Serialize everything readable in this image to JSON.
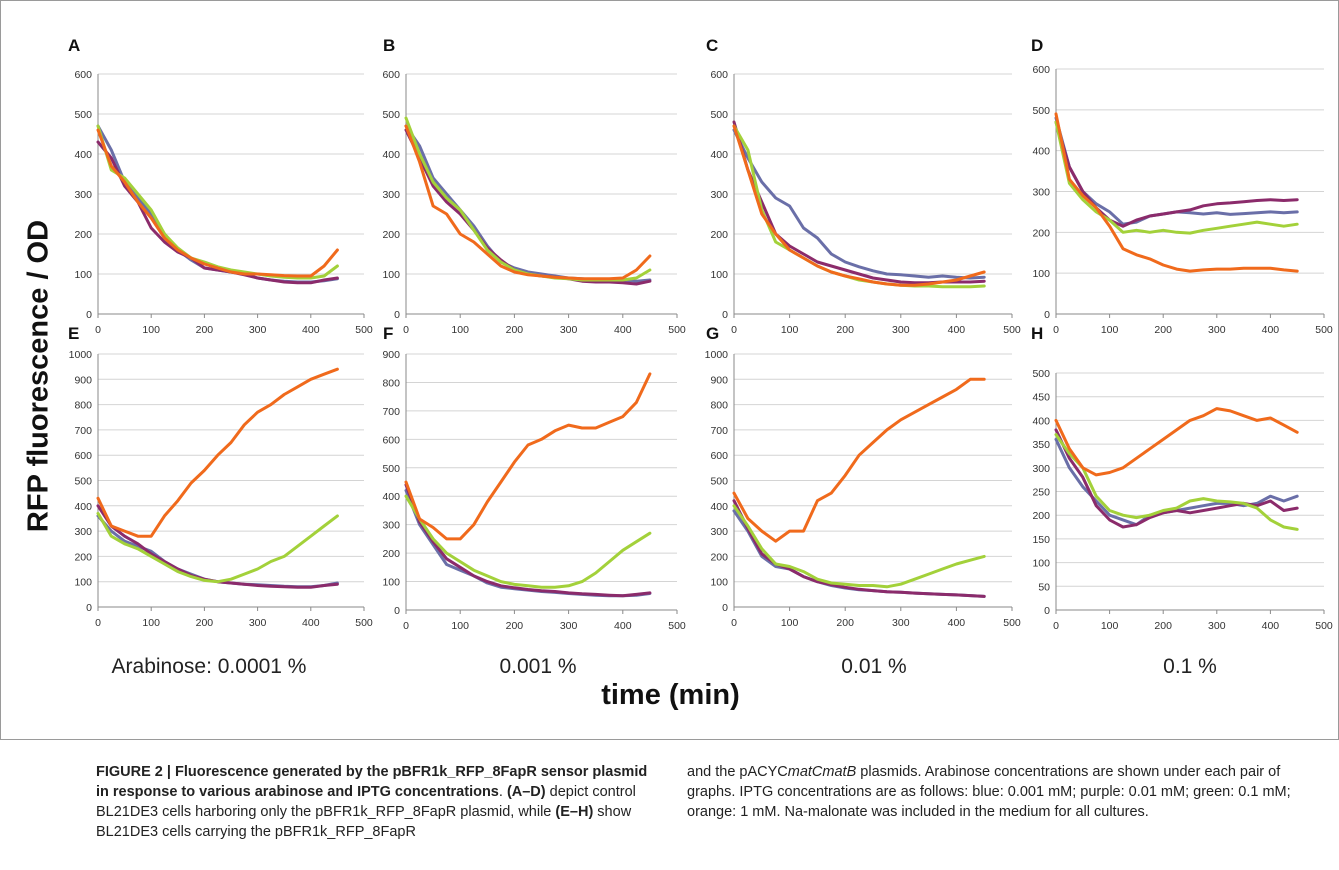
{
  "figure": {
    "y_axis_label": "RFP fluorescence / OD",
    "x_axis_label": "time (min)",
    "concentration_labels": [
      "Arabinose: 0.0001 %",
      "0.001 %",
      "0.01 %",
      "0.1 %"
    ]
  },
  "caption": {
    "figure_number": "FIGURE 2",
    "separator": " | ",
    "title": "Fluorescence generated by the pBFR1k_RFP_8FapR sensor plasmid in response to various arabinose and IPTG concentrations",
    "p1": ". ",
    "ref_ad": "(A–D)",
    "p2": " depict control BL21DE3 cells harboring only the pBFR1k_RFP_8FapR plasmid, while ",
    "ref_eh": "(E–H)",
    "p3": " show BL21DE3 cells carrying the pBFR1k_RFP_8FapR and the pACYC",
    "plasmid_italic": "matCmatB",
    "p4": " plasmids. Arabinose concentrations are shown under each pair of graphs. IPTG concentrations are as follows: blue: 0.001 mM; purple: 0.01 mM; green: 0.1 mM; orange: 1 mM. Na-malonate was included in the medium for all cultures."
  },
  "colors": {
    "blue": "#6a6fa8",
    "purple": "#8b2b6b",
    "green": "#a3d13a",
    "orange": "#f06a1c",
    "grid": "#d4d4d4",
    "axis": "#8a8a8a"
  },
  "chart_data": [
    {
      "panel": "A",
      "type": "line",
      "x": [
        0,
        25,
        50,
        75,
        100,
        125,
        150,
        175,
        200,
        225,
        250,
        275,
        300,
        325,
        350,
        375,
        400,
        425,
        450
      ],
      "xlim": [
        0,
        500
      ],
      "ylim": [
        0,
        600
      ],
      "yticks": [
        0,
        100,
        200,
        300,
        400,
        500,
        600
      ],
      "xticks": [
        0,
        100,
        200,
        300,
        400,
        500
      ],
      "series": [
        {
          "color": "blue",
          "values": [
            470,
            410,
            330,
            290,
            250,
            200,
            160,
            135,
            115,
            110,
            105,
            100,
            90,
            85,
            82,
            80,
            80,
            83,
            88
          ]
        },
        {
          "color": "purple",
          "values": [
            430,
            390,
            320,
            280,
            215,
            180,
            155,
            140,
            115,
            110,
            105,
            98,
            90,
            85,
            80,
            78,
            78,
            85,
            90
          ]
        },
        {
          "color": "green",
          "values": [
            470,
            360,
            340,
            300,
            260,
            200,
            165,
            140,
            130,
            118,
            110,
            105,
            100,
            95,
            92,
            90,
            90,
            95,
            120
          ]
        },
        {
          "color": "orange",
          "values": [
            460,
            370,
            330,
            280,
            240,
            190,
            160,
            140,
            125,
            115,
            105,
            100,
            100,
            98,
            96,
            95,
            95,
            120,
            160
          ]
        }
      ]
    },
    {
      "panel": "B",
      "type": "line",
      "x": [
        0,
        25,
        50,
        75,
        100,
        125,
        150,
        175,
        200,
        225,
        250,
        275,
        300,
        325,
        350,
        375,
        400,
        425,
        450
      ],
      "xlim": [
        0,
        500
      ],
      "ylim": [
        0,
        600
      ],
      "yticks": [
        0,
        100,
        200,
        300,
        400,
        500,
        600
      ],
      "xticks": [
        0,
        100,
        200,
        300,
        400,
        500
      ],
      "series": [
        {
          "color": "blue",
          "values": [
            470,
            420,
            340,
            300,
            260,
            220,
            170,
            130,
            115,
            105,
            100,
            95,
            90,
            88,
            85,
            85,
            85,
            82,
            85
          ]
        },
        {
          "color": "purple",
          "values": [
            460,
            390,
            320,
            280,
            250,
            210,
            165,
            135,
            110,
            100,
            95,
            92,
            88,
            82,
            80,
            80,
            78,
            75,
            82
          ]
        },
        {
          "color": "green",
          "values": [
            490,
            400,
            330,
            290,
            260,
            210,
            160,
            130,
            110,
            100,
            95,
            90,
            88,
            85,
            85,
            85,
            85,
            90,
            110
          ]
        },
        {
          "color": "orange",
          "values": [
            470,
            380,
            270,
            250,
            200,
            180,
            150,
            120,
            105,
            98,
            95,
            92,
            90,
            88,
            88,
            88,
            90,
            110,
            145
          ]
        }
      ]
    },
    {
      "panel": "C",
      "type": "line",
      "x": [
        0,
        25,
        50,
        75,
        100,
        125,
        150,
        175,
        200,
        225,
        250,
        275,
        300,
        325,
        350,
        375,
        400,
        425,
        450
      ],
      "xlim": [
        0,
        500
      ],
      "ylim": [
        0,
        600
      ],
      "yticks": [
        0,
        100,
        200,
        300,
        400,
        500,
        600
      ],
      "xticks": [
        0,
        100,
        200,
        300,
        400,
        500
      ],
      "series": [
        {
          "color": "blue",
          "values": [
            460,
            390,
            330,
            290,
            270,
            215,
            190,
            150,
            130,
            118,
            108,
            100,
            98,
            95,
            92,
            95,
            92,
            90,
            92
          ]
        },
        {
          "color": "purple",
          "values": [
            480,
            360,
            280,
            200,
            170,
            150,
            130,
            120,
            110,
            100,
            90,
            85,
            80,
            78,
            78,
            80,
            80,
            80,
            82
          ]
        },
        {
          "color": "green",
          "values": [
            470,
            410,
            260,
            180,
            160,
            140,
            120,
            105,
            95,
            85,
            80,
            75,
            72,
            70,
            70,
            68,
            68,
            68,
            70
          ]
        },
        {
          "color": "orange",
          "values": [
            470,
            360,
            250,
            200,
            160,
            140,
            120,
            105,
            95,
            88,
            80,
            75,
            72,
            72,
            75,
            80,
            85,
            95,
            105
          ]
        }
      ]
    },
    {
      "panel": "D",
      "type": "line",
      "x": [
        0,
        25,
        50,
        75,
        100,
        125,
        150,
        175,
        200,
        225,
        250,
        275,
        300,
        325,
        350,
        375,
        400,
        425,
        450
      ],
      "xlim": [
        0,
        500
      ],
      "ylim": [
        0,
        600
      ],
      "yticks": [
        0,
        100,
        200,
        300,
        400,
        500,
        600
      ],
      "xticks": [
        0,
        100,
        200,
        300,
        400,
        500
      ],
      "series": [
        {
          "color": "blue",
          "values": [
            480,
            360,
            300,
            270,
            250,
            220,
            225,
            240,
            245,
            250,
            248,
            245,
            248,
            244,
            246,
            248,
            250,
            248,
            250
          ]
        },
        {
          "color": "purple",
          "values": [
            470,
            360,
            300,
            260,
            230,
            215,
            230,
            240,
            245,
            250,
            255,
            265,
            270,
            272,
            275,
            278,
            280,
            278,
            280
          ]
        },
        {
          "color": "green",
          "values": [
            470,
            320,
            280,
            250,
            230,
            200,
            205,
            200,
            205,
            200,
            198,
            205,
            210,
            215,
            220,
            225,
            220,
            215,
            220
          ]
        },
        {
          "color": "orange",
          "values": [
            490,
            330,
            290,
            260,
            215,
            160,
            145,
            135,
            120,
            110,
            105,
            108,
            110,
            110,
            112,
            112,
            112,
            108,
            105
          ]
        }
      ]
    },
    {
      "panel": "E",
      "type": "line",
      "x": [
        0,
        25,
        50,
        75,
        100,
        125,
        150,
        175,
        200,
        225,
        250,
        275,
        300,
        325,
        350,
        375,
        400,
        425,
        450
      ],
      "xlim": [
        0,
        500
      ],
      "ylim": [
        0,
        1000
      ],
      "yticks": [
        0,
        100,
        200,
        300,
        400,
        500,
        600,
        700,
        800,
        900,
        1000
      ],
      "xticks": [
        0,
        100,
        200,
        300,
        400,
        500
      ],
      "series": [
        {
          "color": "blue",
          "values": [
            360,
            300,
            260,
            240,
            220,
            180,
            150,
            130,
            110,
            100,
            95,
            90,
            88,
            85,
            82,
            80,
            80,
            85,
            95
          ]
        },
        {
          "color": "purple",
          "values": [
            400,
            320,
            280,
            250,
            210,
            180,
            150,
            125,
            110,
            100,
            95,
            90,
            85,
            82,
            80,
            78,
            78,
            85,
            90
          ]
        },
        {
          "color": "green",
          "values": [
            370,
            280,
            250,
            230,
            200,
            170,
            140,
            120,
            105,
            100,
            110,
            130,
            150,
            180,
            200,
            240,
            280,
            320,
            360
          ]
        },
        {
          "color": "orange",
          "values": [
            430,
            320,
            300,
            280,
            280,
            360,
            420,
            490,
            540,
            600,
            650,
            720,
            770,
            800,
            840,
            870,
            900,
            920,
            940
          ]
        }
      ]
    },
    {
      "panel": "F",
      "type": "line",
      "x": [
        0,
        25,
        50,
        75,
        100,
        125,
        150,
        175,
        200,
        225,
        250,
        275,
        300,
        325,
        350,
        375,
        400,
        425,
        450
      ],
      "xlim": [
        0,
        500
      ],
      "ylim": [
        0,
        900
      ],
      "yticks": [
        0,
        100,
        200,
        300,
        400,
        500,
        600,
        700,
        800,
        900
      ],
      "xticks": [
        0,
        100,
        200,
        300,
        400,
        500
      ],
      "series": [
        {
          "color": "blue",
          "values": [
            420,
            300,
            230,
            160,
            140,
            120,
            95,
            80,
            75,
            70,
            65,
            62,
            58,
            55,
            52,
            50,
            50,
            52,
            58
          ]
        },
        {
          "color": "purple",
          "values": [
            440,
            310,
            240,
            180,
            150,
            120,
            100,
            85,
            78,
            72,
            68,
            65,
            60,
            57,
            55,
            52,
            50,
            55,
            60
          ]
        },
        {
          "color": "green",
          "values": [
            400,
            320,
            250,
            200,
            170,
            140,
            120,
            100,
            90,
            85,
            80,
            80,
            85,
            100,
            130,
            170,
            210,
            240,
            270
          ]
        },
        {
          "color": "orange",
          "values": [
            450,
            320,
            290,
            250,
            250,
            300,
            380,
            450,
            520,
            580,
            600,
            630,
            650,
            640,
            640,
            660,
            680,
            730,
            830
          ]
        }
      ]
    },
    {
      "panel": "G",
      "type": "line",
      "x": [
        0,
        25,
        50,
        75,
        100,
        125,
        150,
        175,
        200,
        225,
        250,
        275,
        300,
        325,
        350,
        375,
        400,
        425,
        450
      ],
      "xlim": [
        0,
        500
      ],
      "ylim": [
        0,
        1000
      ],
      "yticks": [
        0,
        100,
        200,
        300,
        400,
        500,
        600,
        700,
        800,
        900,
        1000
      ],
      "xticks": [
        0,
        100,
        200,
        300,
        400,
        500
      ],
      "series": [
        {
          "color": "blue",
          "values": [
            380,
            300,
            200,
            160,
            150,
            120,
            100,
            85,
            75,
            68,
            65,
            60,
            58,
            55,
            52,
            50,
            48,
            45,
            42
          ]
        },
        {
          "color": "purple",
          "values": [
            420,
            310,
            210,
            170,
            150,
            120,
            100,
            88,
            78,
            70,
            65,
            60,
            58,
            55,
            52,
            50,
            48,
            45,
            42
          ]
        },
        {
          "color": "green",
          "values": [
            400,
            320,
            230,
            170,
            160,
            140,
            110,
            95,
            90,
            85,
            85,
            80,
            90,
            110,
            130,
            150,
            170,
            185,
            200
          ]
        },
        {
          "color": "orange",
          "values": [
            450,
            350,
            300,
            260,
            300,
            300,
            420,
            450,
            520,
            600,
            650,
            700,
            740,
            770,
            800,
            830,
            860,
            900,
            900
          ]
        }
      ]
    },
    {
      "panel": "H",
      "type": "line",
      "x": [
        0,
        25,
        50,
        75,
        100,
        125,
        150,
        175,
        200,
        225,
        250,
        275,
        300,
        325,
        350,
        375,
        400,
        425,
        450
      ],
      "xlim": [
        0,
        500
      ],
      "ylim": [
        0,
        500
      ],
      "yticks": [
        0,
        50,
        100,
        150,
        200,
        250,
        300,
        350,
        400,
        450,
        500
      ],
      "xticks": [
        0,
        100,
        200,
        300,
        400,
        500
      ],
      "series": [
        {
          "color": "blue",
          "values": [
            360,
            300,
            260,
            230,
            200,
            190,
            180,
            200,
            205,
            210,
            215,
            220,
            225,
            225,
            220,
            225,
            240,
            230,
            240
          ]
        },
        {
          "color": "purple",
          "values": [
            380,
            320,
            280,
            220,
            190,
            175,
            180,
            195,
            205,
            210,
            205,
            210,
            215,
            220,
            225,
            220,
            230,
            210,
            215
          ]
        },
        {
          "color": "green",
          "values": [
            370,
            330,
            300,
            240,
            210,
            200,
            195,
            200,
            210,
            215,
            230,
            235,
            230,
            228,
            225,
            215,
            190,
            175,
            170
          ]
        },
        {
          "color": "orange",
          "values": [
            400,
            340,
            300,
            285,
            290,
            300,
            320,
            340,
            360,
            380,
            400,
            410,
            425,
            420,
            410,
            400,
            405,
            390,
            375
          ]
        }
      ]
    }
  ]
}
